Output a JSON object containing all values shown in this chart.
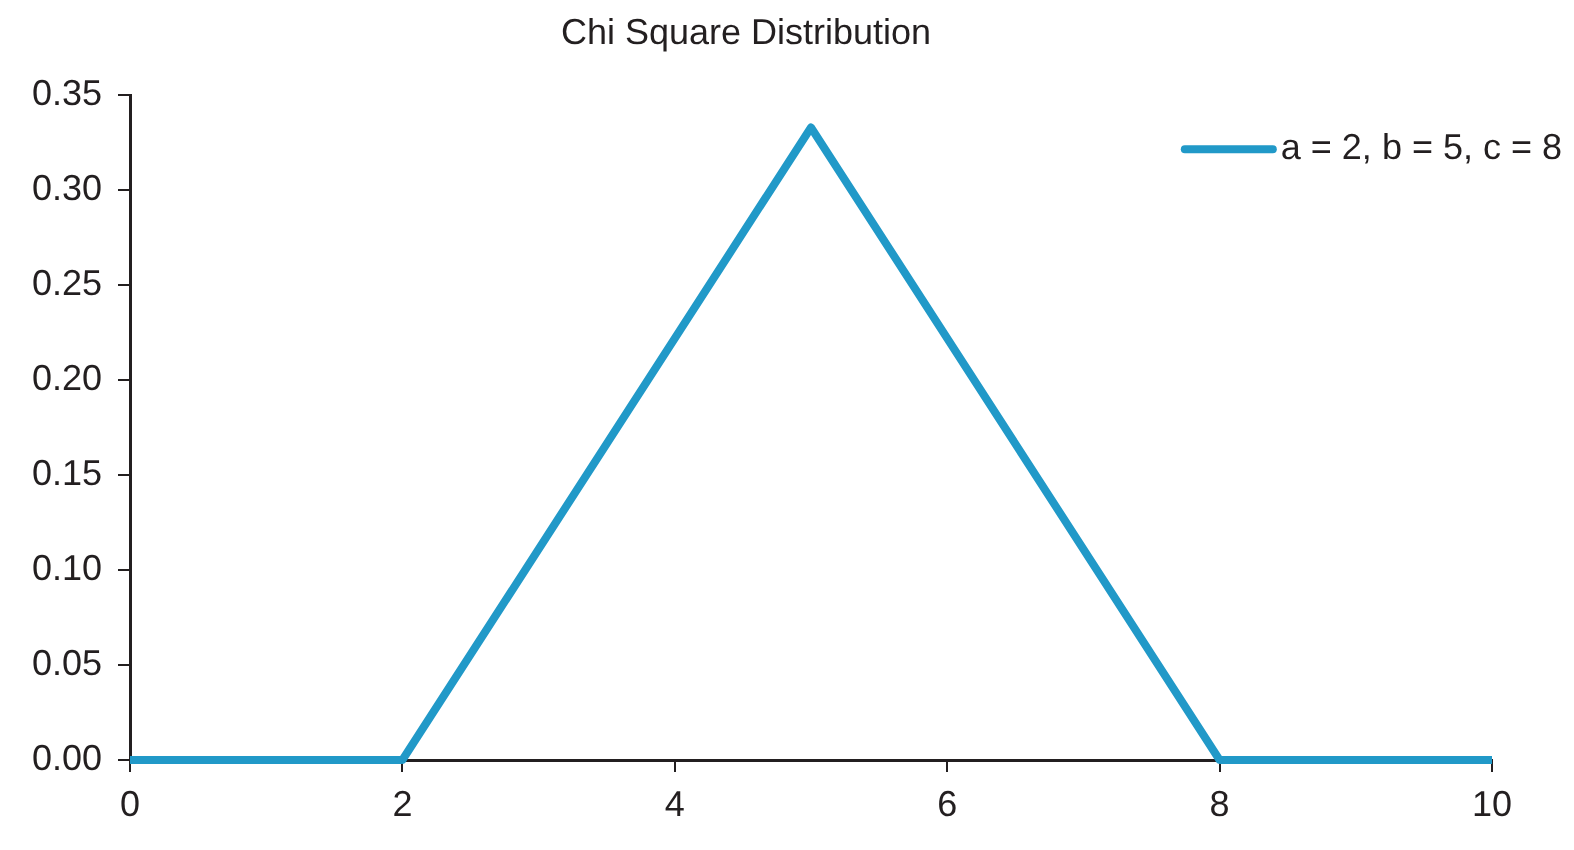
{
  "chart_data": {
    "type": "line",
    "title": "Chi Square Distribution",
    "x": [
      0,
      2,
      5,
      8,
      10
    ],
    "series": [
      {
        "name": "a = 2, b = 5, c = 8",
        "color": "#2199c8",
        "values": [
          0,
          0,
          0.333,
          0,
          0
        ]
      }
    ],
    "xlim": [
      0,
      10
    ],
    "xticks": [
      0,
      2,
      4,
      6,
      8,
      10
    ],
    "ylim": [
      0,
      0.35
    ],
    "yticks": [
      {
        "value": 0,
        "label": "0.00"
      },
      {
        "value": 0.05,
        "label": "0.05"
      },
      {
        "value": 0.1,
        "label": "0.10"
      },
      {
        "value": 0.15,
        "label": "0.15"
      },
      {
        "value": 0.2,
        "label": "0.20"
      },
      {
        "value": 0.25,
        "label": "0.25"
      },
      {
        "value": 0.3,
        "label": "0.30"
      },
      {
        "value": 0.35,
        "label": "0.35"
      }
    ],
    "grid": false,
    "legend": "top right",
    "marker": "none",
    "line_style": "solid"
  }
}
